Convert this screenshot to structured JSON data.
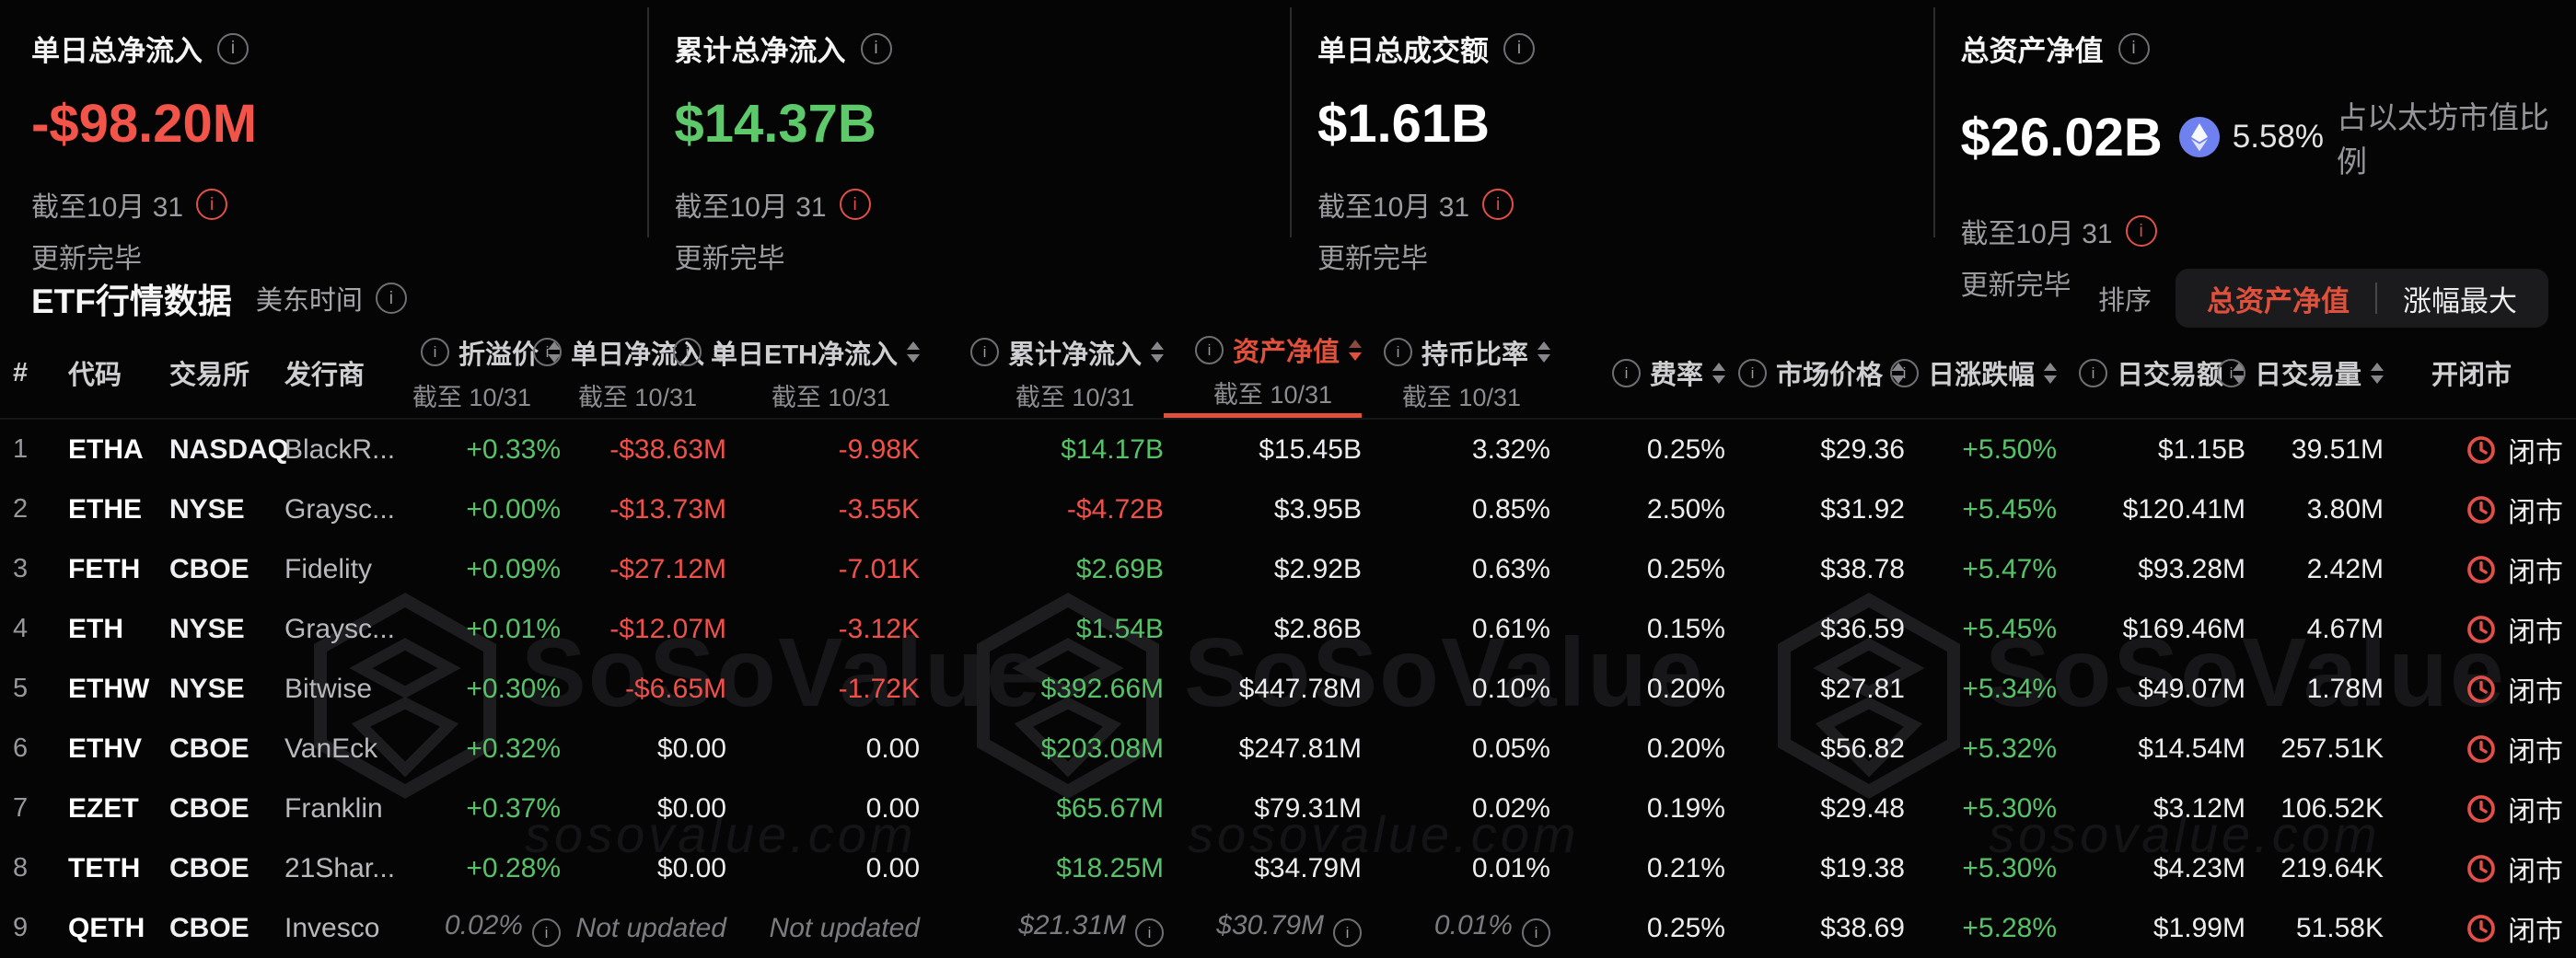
{
  "stats": [
    {
      "title": "单日总净流入",
      "value": "-$98.20M",
      "as_of": "截至10月 31",
      "status": "更新完毕"
    },
    {
      "title": "累计总净流入",
      "value": "$14.37B",
      "as_of": "截至10月 31",
      "status": "更新完毕"
    },
    {
      "title": "单日总成交额",
      "value": "$1.61B",
      "as_of": "截至10月 31",
      "status": "更新完毕"
    },
    {
      "title": "总资产净值",
      "value": "$26.02B",
      "eth_share_pct": "5.58%",
      "eth_share_label": "占以太坊市值比例",
      "as_of": "截至10月 31",
      "status": "更新完毕"
    }
  ],
  "section": {
    "title": "ETF行情数据",
    "timezone": "美东时间",
    "sort_label": "排序",
    "sort_options": [
      "总资产净值",
      "涨幅最大"
    ],
    "active_sort": "总资产净值"
  },
  "colors": {
    "accent_red": "#e0503a",
    "positive_green": "#57c267",
    "negative_red": "#ef5049",
    "eth_icon_blue": "#6e81ee",
    "clock_red": "#e04f48"
  },
  "table": {
    "columns": [
      {
        "key": "rank",
        "label": "#",
        "align": "left"
      },
      {
        "key": "ticker",
        "label": "代码",
        "align": "left"
      },
      {
        "key": "exchange",
        "label": "交易所",
        "align": "left"
      },
      {
        "key": "issuer",
        "label": "发行商",
        "align": "left"
      },
      {
        "key": "premium",
        "label": "折溢价",
        "sub": "截至 10/31",
        "info": true,
        "sortable": true
      },
      {
        "key": "daily_inflow",
        "label": "单日净流入",
        "sub": "截至 10/31",
        "info": true,
        "sortable": true
      },
      {
        "key": "daily_eth_inflow",
        "label": "单日ETH净流入",
        "sub": "截至 10/31",
        "info": true,
        "sortable": true
      },
      {
        "key": "cum_inflow",
        "label": "累计净流入",
        "sub": "截至 10/31",
        "info": true,
        "sortable": true
      },
      {
        "key": "nav",
        "label": "资产净值",
        "sub": "截至 10/31",
        "info": true,
        "sortable": true,
        "active": true
      },
      {
        "key": "holding_ratio",
        "label": "持币比率",
        "sub": "截至 10/31",
        "info": true,
        "sortable": true
      },
      {
        "key": "fee",
        "label": "费率",
        "info": true,
        "sortable": true
      },
      {
        "key": "price",
        "label": "市场价格",
        "info": true,
        "sortable": true
      },
      {
        "key": "change",
        "label": "日涨跌幅",
        "info": true,
        "sortable": true
      },
      {
        "key": "vol_usd",
        "label": "日交易额",
        "info": true,
        "sortable": true
      },
      {
        "key": "vol_shares",
        "label": "日交易量",
        "info": true,
        "sortable": true
      },
      {
        "key": "status",
        "label": "开闭市",
        "align": "right"
      }
    ],
    "rows": [
      {
        "rank": "1",
        "ticker": "ETHA",
        "exchange": "NASDAQ",
        "issuer": "BlackR...",
        "premium": "+0.33%",
        "daily_inflow": "-$38.63M",
        "daily_eth_inflow": "-9.98K",
        "cum_inflow": "$14.17B",
        "nav": "$15.45B",
        "holding_ratio": "3.32%",
        "fee": "0.25%",
        "price": "$29.36",
        "change": "+5.50%",
        "vol_usd": "$1.15B",
        "vol_shares": "39.51M",
        "status": "闭市"
      },
      {
        "rank": "2",
        "ticker": "ETHE",
        "exchange": "NYSE",
        "issuer": "Graysc...",
        "premium": "+0.00%",
        "daily_inflow": "-$13.73M",
        "daily_eth_inflow": "-3.55K",
        "cum_inflow": "-$4.72B",
        "nav": "$3.95B",
        "holding_ratio": "0.85%",
        "fee": "2.50%",
        "price": "$31.92",
        "change": "+5.45%",
        "vol_usd": "$120.41M",
        "vol_shares": "3.80M",
        "status": "闭市"
      },
      {
        "rank": "3",
        "ticker": "FETH",
        "exchange": "CBOE",
        "issuer": "Fidelity",
        "premium": "+0.09%",
        "daily_inflow": "-$27.12M",
        "daily_eth_inflow": "-7.01K",
        "cum_inflow": "$2.69B",
        "nav": "$2.92B",
        "holding_ratio": "0.63%",
        "fee": "0.25%",
        "price": "$38.78",
        "change": "+5.47%",
        "vol_usd": "$93.28M",
        "vol_shares": "2.42M",
        "status": "闭市"
      },
      {
        "rank": "4",
        "ticker": "ETH",
        "exchange": "NYSE",
        "issuer": "Graysc...",
        "premium": "+0.01%",
        "daily_inflow": "-$12.07M",
        "daily_eth_inflow": "-3.12K",
        "cum_inflow": "$1.54B",
        "nav": "$2.86B",
        "holding_ratio": "0.61%",
        "fee": "0.15%",
        "price": "$36.59",
        "change": "+5.45%",
        "vol_usd": "$169.46M",
        "vol_shares": "4.67M",
        "status": "闭市"
      },
      {
        "rank": "5",
        "ticker": "ETHW",
        "exchange": "NYSE",
        "issuer": "Bitwise",
        "premium": "+0.30%",
        "daily_inflow": "-$6.65M",
        "daily_eth_inflow": "-1.72K",
        "cum_inflow": "$392.66M",
        "nav": "$447.78M",
        "holding_ratio": "0.10%",
        "fee": "0.20%",
        "price": "$27.81",
        "change": "+5.34%",
        "vol_usd": "$49.07M",
        "vol_shares": "1.78M",
        "status": "闭市"
      },
      {
        "rank": "6",
        "ticker": "ETHV",
        "exchange": "CBOE",
        "issuer": "VanEck",
        "premium": "+0.32%",
        "daily_inflow": "$0.00",
        "daily_eth_inflow": "0.00",
        "cum_inflow": "$203.08M",
        "nav": "$247.81M",
        "holding_ratio": "0.05%",
        "fee": "0.20%",
        "price": "$56.82",
        "change": "+5.32%",
        "vol_usd": "$14.54M",
        "vol_shares": "257.51K",
        "status": "闭市"
      },
      {
        "rank": "7",
        "ticker": "EZET",
        "exchange": "CBOE",
        "issuer": "Franklin",
        "premium": "+0.37%",
        "daily_inflow": "$0.00",
        "daily_eth_inflow": "0.00",
        "cum_inflow": "$65.67M",
        "nav": "$79.31M",
        "holding_ratio": "0.02%",
        "fee": "0.19%",
        "price": "$29.48",
        "change": "+5.30%",
        "vol_usd": "$3.12M",
        "vol_shares": "106.52K",
        "status": "闭市"
      },
      {
        "rank": "8",
        "ticker": "TETH",
        "exchange": "CBOE",
        "issuer": "21Shar...",
        "premium": "+0.28%",
        "daily_inflow": "$0.00",
        "daily_eth_inflow": "0.00",
        "cum_inflow": "$18.25M",
        "nav": "$34.79M",
        "holding_ratio": "0.01%",
        "fee": "0.21%",
        "price": "$19.38",
        "change": "+5.30%",
        "vol_usd": "$4.23M",
        "vol_shares": "219.64K",
        "status": "闭市"
      },
      {
        "rank": "9",
        "ticker": "QETH",
        "exchange": "CBOE",
        "issuer": "Invesco",
        "premium": "0.02%",
        "daily_inflow": "Not updated",
        "daily_eth_inflow": "Not updated",
        "cum_inflow": "$21.31M",
        "nav": "$30.79M",
        "holding_ratio": "0.01%",
        "fee": "0.25%",
        "price": "$38.69",
        "change": "+5.28%",
        "vol_usd": "$1.99M",
        "vol_shares": "51.58K",
        "status": "闭市",
        "stale": true,
        "stale_info": [
          "premium",
          "cum_inflow",
          "nav",
          "holding_ratio"
        ]
      }
    ]
  },
  "watermark": {
    "brand": "SoSoValue",
    "domain": "sosovalue.com"
  }
}
